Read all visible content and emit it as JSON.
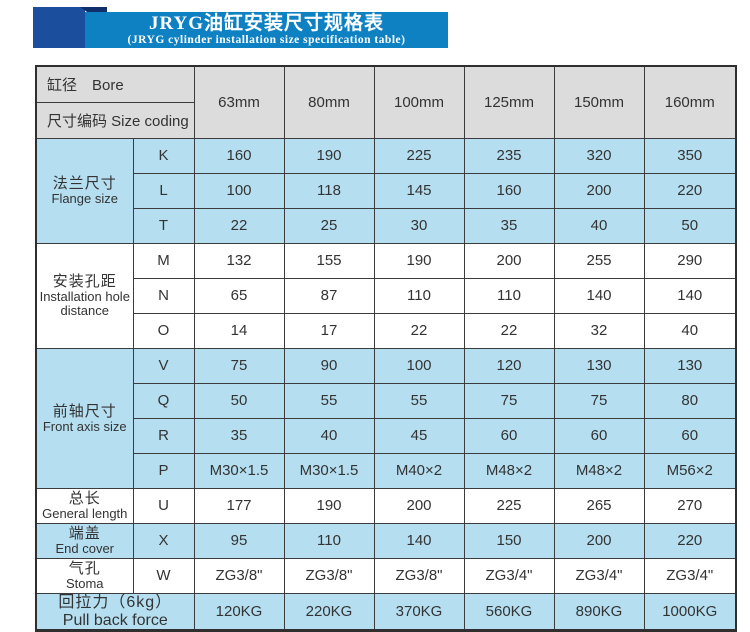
{
  "banner": {
    "title": "JRYG油缸安装尺寸规格表",
    "subtitle": "(JRYG cylinder installation size specification table)"
  },
  "colors": {
    "banner_blue": "#0e81c3",
    "square_navy": "#1c4e9e",
    "fold_navy": "#0f2f6b",
    "row_blue": "#b5dff1",
    "header_gray": "#dcdcdc",
    "border_dark": "#3c3c3c",
    "text": "#333333"
  },
  "chart_data": {
    "type": "table",
    "title": "JRYG油缸安装尺寸规格表",
    "subtitle": "(JRYG cylinder installation size specification table)",
    "header": {
      "bore_label": "缸径　Bore",
      "size_coding_label": "尺寸编码 Size coding",
      "columns": [
        "63mm",
        "80mm",
        "100mm",
        "125mm",
        "150mm",
        "160mm"
      ]
    },
    "groups": [
      {
        "label_zh": "法兰尺寸",
        "label_en": "Flange size",
        "tone": "blue",
        "span_code": false,
        "rows": [
          {
            "code": "K",
            "values": [
              "160",
              "190",
              "225",
              "235",
              "320",
              "350"
            ]
          },
          {
            "code": "L",
            "values": [
              "100",
              "118",
              "145",
              "160",
              "200",
              "220"
            ]
          },
          {
            "code": "T",
            "values": [
              "22",
              "25",
              "30",
              "35",
              "40",
              "50"
            ]
          }
        ]
      },
      {
        "label_zh": "安装孔距",
        "label_en": "Installation hole distance",
        "tone": "white",
        "span_code": false,
        "rows": [
          {
            "code": "M",
            "values": [
              "132",
              "155",
              "190",
              "200",
              "255",
              "290"
            ]
          },
          {
            "code": "N",
            "values": [
              "65",
              "87",
              "110",
              "110",
              "140",
              "140"
            ]
          },
          {
            "code": "O",
            "values": [
              "14",
              "17",
              "22",
              "22",
              "32",
              "40"
            ]
          }
        ]
      },
      {
        "label_zh": "前轴尺寸",
        "label_en": "Front axis size",
        "tone": "blue",
        "span_code": false,
        "rows": [
          {
            "code": "V",
            "values": [
              "75",
              "90",
              "100",
              "120",
              "130",
              "130"
            ]
          },
          {
            "code": "Q",
            "values": [
              "50",
              "55",
              "55",
              "75",
              "75",
              "80"
            ]
          },
          {
            "code": "R",
            "values": [
              "35",
              "40",
              "45",
              "60",
              "60",
              "60"
            ]
          },
          {
            "code": "P",
            "values": [
              "M30×1.5",
              "M30×1.5",
              "M40×2",
              "M48×2",
              "M48×2",
              "M56×2"
            ]
          }
        ]
      },
      {
        "label_zh": "总长",
        "label_en": "General length",
        "tone": "white",
        "span_code": false,
        "rows": [
          {
            "code": "U",
            "values": [
              "177",
              "190",
              "200",
              "225",
              "265",
              "270"
            ]
          }
        ]
      },
      {
        "label_zh": "端盖",
        "label_en": "End cover",
        "tone": "blue",
        "span_code": false,
        "rows": [
          {
            "code": "X",
            "values": [
              "95",
              "110",
              "140",
              "150",
              "200",
              "220"
            ]
          }
        ]
      },
      {
        "label_zh": "气孔",
        "label_en": "Stoma",
        "tone": "white",
        "span_code": false,
        "rows": [
          {
            "code": "W",
            "values": [
              "ZG3/8\"",
              "ZG3/8\"",
              "ZG3/8\"",
              "ZG3/4\"",
              "ZG3/4\"",
              "ZG3/4\""
            ]
          }
        ]
      },
      {
        "label_zh": "回拉力（6kg）",
        "label_en": "Pull back force",
        "tone": "blue",
        "span_code": true,
        "big_label": true,
        "rows": [
          {
            "code": null,
            "values": [
              "120KG",
              "220KG",
              "370KG",
              "560KG",
              "890KG",
              "1000KG"
            ]
          }
        ]
      }
    ]
  }
}
